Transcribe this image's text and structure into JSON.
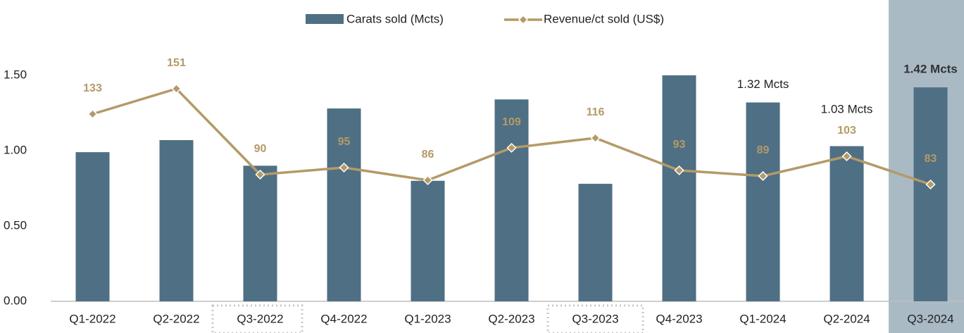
{
  "chart_data": {
    "type": "bar-line",
    "categories": [
      "Q1-2022",
      "Q2-2022",
      "Q3-2022",
      "Q4-2022",
      "Q1-2023",
      "Q2-2023",
      "Q3-2023",
      "Q4-2023",
      "Q1-2024",
      "Q2-2024",
      "Q3-2024"
    ],
    "series": [
      {
        "name": "Carats sold (Mcts)",
        "type": "bar",
        "color": "#4f6f84",
        "values": [
          0.99,
          1.07,
          0.9,
          1.28,
          0.8,
          1.34,
          0.78,
          1.5,
          1.32,
          1.03,
          1.42
        ],
        "value_labels": [
          null,
          null,
          null,
          null,
          null,
          null,
          null,
          null,
          "1.32 Mcts",
          "1.03 Mcts",
          "1.42 Mcts"
        ]
      },
      {
        "name": "Revenue/ct sold (US$)",
        "type": "line",
        "axis": "y2",
        "color": "#b49a67",
        "values": [
          133,
          151,
          90,
          95,
          86,
          109,
          116,
          93,
          89,
          103,
          83
        ]
      }
    ],
    "ylim": [
      0,
      2.0
    ],
    "yticks": [
      {
        "value": 0,
        "label": "0.00"
      },
      {
        "value": 0.5,
        "label": "0.50"
      },
      {
        "value": 1.0,
        "label": "1.00"
      },
      {
        "value": 1.5,
        "label": "1.50"
      }
    ],
    "y2lim": [
      0,
      214
    ],
    "highlight_color": "#a9bac5"
  }
}
